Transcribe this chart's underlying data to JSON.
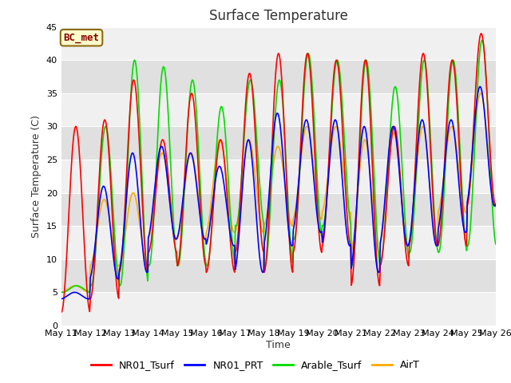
{
  "title": "Surface Temperature",
  "ylabel": "Surface Temperature (C)",
  "xlabel": "Time",
  "annotation": "BC_met",
  "ylim": [
    0,
    45
  ],
  "x_tick_labels": [
    "May 11",
    "May 12",
    "May 13",
    "May 14",
    "May 15",
    "May 16",
    "May 17",
    "May 18",
    "May 19",
    "May 20",
    "May 21",
    "May 22",
    "May 23",
    "May 24",
    "May 25",
    "May 26"
  ],
  "series": {
    "NR01_Tsurf": {
      "color": "#ff0000",
      "lw": 1.2
    },
    "NR01_PRT": {
      "color": "#0000ff",
      "lw": 1.2
    },
    "Arable_Tsurf": {
      "color": "#00dd00",
      "lw": 1.2
    },
    "AirT": {
      "color": "#ffaa00",
      "lw": 1.2
    }
  },
  "bg_color": "#e8e8e8",
  "fig_bg": "#ffffff",
  "title_fontsize": 12,
  "label_fontsize": 9,
  "tick_fontsize": 8,
  "legend_fontsize": 9,
  "n_days": 15,
  "pts_per_day": 48,
  "day_maxs_nr01": [
    30,
    31,
    37,
    28,
    35,
    28,
    38,
    41,
    41,
    40,
    40,
    30,
    41,
    40,
    44
  ],
  "day_mins_nr01": [
    2,
    4,
    8,
    11,
    9,
    8,
    11,
    8,
    11,
    12,
    6,
    9,
    12,
    12,
    18
  ],
  "day_maxs_prt": [
    5,
    21,
    26,
    27,
    26,
    24,
    28,
    32,
    31,
    31,
    30,
    30,
    31,
    31,
    36
  ],
  "day_mins_prt": [
    4,
    7,
    8,
    13,
    13,
    12,
    8,
    12,
    14,
    12,
    8,
    12,
    12,
    14,
    18
  ],
  "day_maxs_arable": [
    6,
    30,
    40,
    39,
    37,
    33,
    37,
    37,
    41,
    40,
    40,
    36,
    40,
    40,
    43
  ],
  "day_mins_arable": [
    5,
    6,
    6,
    9,
    9,
    9,
    15,
    9,
    13,
    15,
    9,
    10,
    11,
    11,
    12
  ],
  "day_maxs_air": [
    6,
    19,
    20,
    26,
    26,
    28,
    28,
    27,
    30,
    30,
    28,
    29,
    30,
    30,
    35
  ],
  "day_mins_air": [
    5,
    9,
    9,
    13,
    13,
    14,
    14,
    15,
    16,
    17,
    11,
    12,
    12,
    17,
    18
  ]
}
